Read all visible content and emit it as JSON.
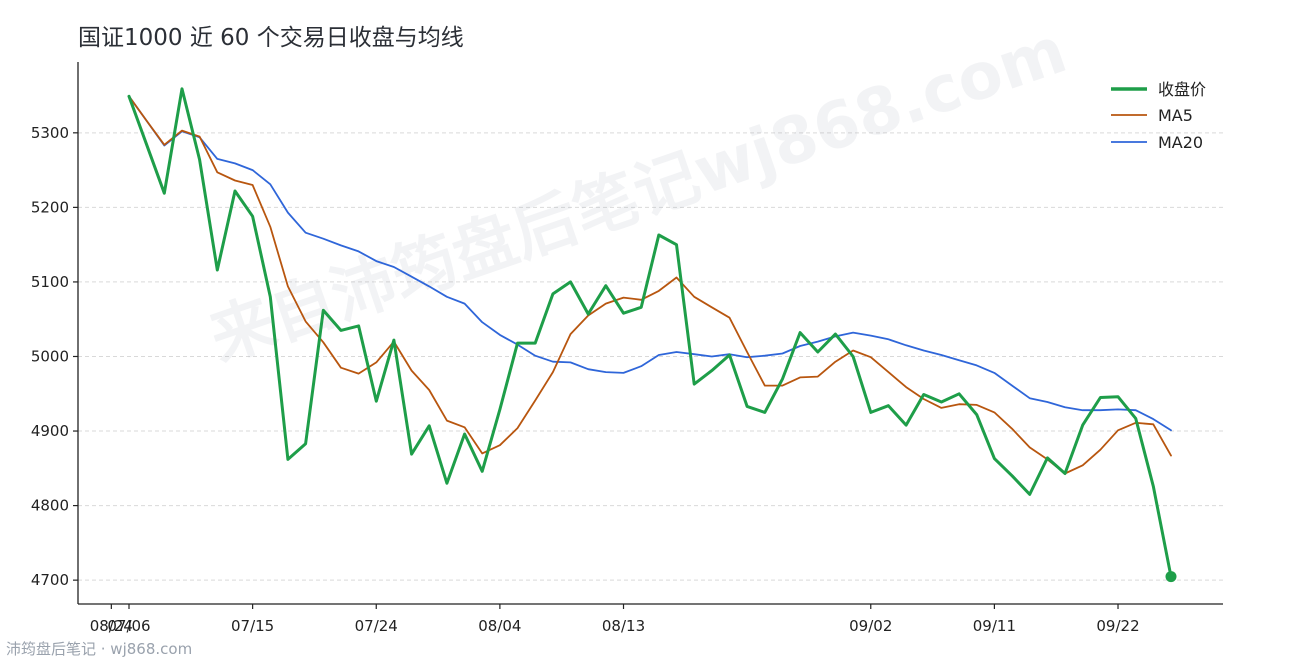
{
  "title": "国证1000 近 60 个交易日收盘与均线",
  "watermark": "来自沛筠盘后笔记wj868.com",
  "footer": "沛筠盘后笔记 · wj868.com",
  "colors": {
    "close": "#1e9e49",
    "ma5": "#b8560f",
    "ma20": "#2f66d9",
    "axis": "#222222",
    "grid": "#d9d9d9",
    "text": "#222222"
  },
  "chart_data": {
    "type": "line",
    "title": "国证1000 近 60 个交易日收盘与均线",
    "x": [
      "07/06",
      "07/07",
      "07/08",
      "07/09",
      "07/10",
      "07/11",
      "07/14",
      "07/15",
      "07/16",
      "07/17",
      "07/18",
      "07/21",
      "07/22",
      "07/23",
      "07/24",
      "07/25",
      "07/28",
      "07/29",
      "07/30",
      "07/31",
      "08/01",
      "08/04",
      "08/05",
      "08/06",
      "08/07",
      "08/08",
      "08/11",
      "08/12",
      "08/13",
      "08/14",
      "08/15",
      "08/18",
      "08/19",
      "08/20",
      "08/21",
      "08/22",
      "08/25",
      "08/26",
      "08/27",
      "08/28",
      "08/29",
      "09/01",
      "09/02",
      "09/03",
      "09/04",
      "09/05",
      "09/08",
      "09/09",
      "09/10",
      "09/11",
      "09/12",
      "09/15",
      "09/16",
      "09/17",
      "09/18",
      "09/19",
      "09/22",
      "09/23",
      "09/24",
      "09/25"
    ],
    "xticks": [
      "07/06",
      "07/15",
      "07/24",
      "08/04",
      "08/13",
      "08/24",
      "09/02",
      "09/11",
      "09/22"
    ],
    "yticks": [
      4700,
      4800,
      4900,
      5000,
      5100,
      5200,
      5300
    ],
    "ylim": [
      4668,
      5395
    ],
    "grid": "horizontal-dashed",
    "legend_position": "top-right",
    "last_label": "4704.80",
    "series": [
      {
        "name": "收盘价",
        "values": [
          5349,
          5284,
          5219,
          5359,
          5264,
          5116,
          5222,
          5188,
          5080,
          4862,
          4883,
          5062,
          5035,
          5041,
          4940,
          5022,
          4869,
          4907,
          4830,
          4896,
          4846,
          4929,
          5018,
          5018,
          5084,
          5100,
          5057,
          5095,
          5058,
          5066,
          5163,
          5150,
          4963,
          4981,
          5002,
          4933,
          4925,
          4970,
          5032,
          5006,
          5030,
          5000,
          4925,
          4934,
          4908,
          4949,
          4939,
          4950,
          4922,
          4863,
          4840,
          4815,
          4864,
          4843,
          4908,
          4945,
          4946,
          4917,
          4826,
          4704.8
        ]
      },
      {
        "name": "MA5",
        "values": [
          5349,
          5316,
          5284,
          5303,
          5295,
          5247,
          5236,
          5230,
          5174,
          5094,
          5047,
          5019,
          4985,
          4977,
          4992,
          5020,
          4981,
          4955,
          4914,
          4905,
          4870,
          4881,
          4904,
          4941,
          4979,
          5030,
          5055,
          5071,
          5079,
          5076,
          5088,
          5106,
          5080,
          5066,
          5052,
          5006,
          4961,
          4961,
          4972,
          4973,
          4993,
          5008,
          4999,
          4979,
          4959,
          4943,
          4931,
          4936,
          4935,
          4925,
          4903,
          4878,
          4862,
          4843,
          4854,
          4875,
          4901,
          4911,
          4909,
          4867
        ]
      },
      {
        "name": "MA20",
        "values": [
          5349,
          5316,
          5283,
          5302,
          5294,
          5265,
          5259,
          5250,
          5231,
          5193,
          5166,
          5158,
          5149,
          5141,
          5128,
          5120,
          5107,
          5094,
          5080,
          5071,
          5046,
          5029,
          5016,
          5001,
          4993,
          4992,
          4983,
          4979,
          4978,
          4987,
          5002,
          5006,
          5003,
          5000,
          5003,
          4999,
          5001,
          5004,
          5014,
          5020,
          5027,
          5032,
          5028,
          5023,
          5015,
          5008,
          5002,
          4995,
          4988,
          4978,
          4961,
          4944,
          4939,
          4932,
          4928,
          4928,
          4929,
          4928,
          4916,
          4901
        ]
      }
    ]
  }
}
